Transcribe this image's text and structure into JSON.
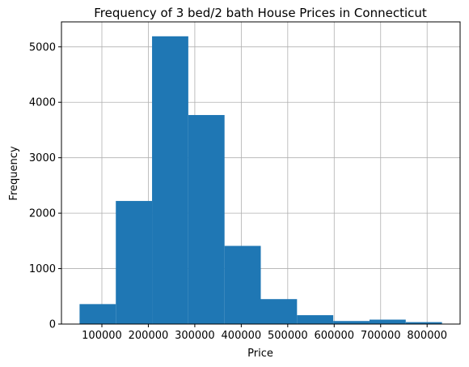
{
  "chart_data": {
    "type": "bar",
    "title": "Frequency of 3 bed/2 bath House Prices in Connecticut",
    "xlabel": "Price",
    "ylabel": "Frequency",
    "bins": [
      {
        "x0": 52000,
        "x1": 130000,
        "count": 360
      },
      {
        "x0": 130000,
        "x1": 208000,
        "count": 2220
      },
      {
        "x0": 208000,
        "x1": 286000,
        "count": 5190
      },
      {
        "x0": 286000,
        "x1": 364000,
        "count": 3770
      },
      {
        "x0": 364000,
        "x1": 442000,
        "count": 1410
      },
      {
        "x0": 442000,
        "x1": 520000,
        "count": 450
      },
      {
        "x0": 520000,
        "x1": 598000,
        "count": 160
      },
      {
        "x0": 598000,
        "x1": 676000,
        "count": 55
      },
      {
        "x0": 676000,
        "x1": 754000,
        "count": 80
      },
      {
        "x0": 754000,
        "x1": 832000,
        "count": 35
      }
    ],
    "xlim": [
      13000,
      871000
    ],
    "ylim": [
      0,
      5450
    ],
    "xticks": [
      100000,
      200000,
      300000,
      400000,
      500000,
      600000,
      700000,
      800000
    ],
    "xtick_labels": [
      "100000",
      "200000",
      "300000",
      "400000",
      "500000",
      "600000",
      "700000",
      "800000"
    ],
    "yticks": [
      0,
      1000,
      2000,
      3000,
      4000,
      5000
    ],
    "ytick_labels": [
      "0",
      "1000",
      "2000",
      "3000",
      "4000",
      "5000"
    ],
    "grid": true,
    "bar_color": "#1f77b4",
    "grid_color": "#b0b0b0"
  }
}
